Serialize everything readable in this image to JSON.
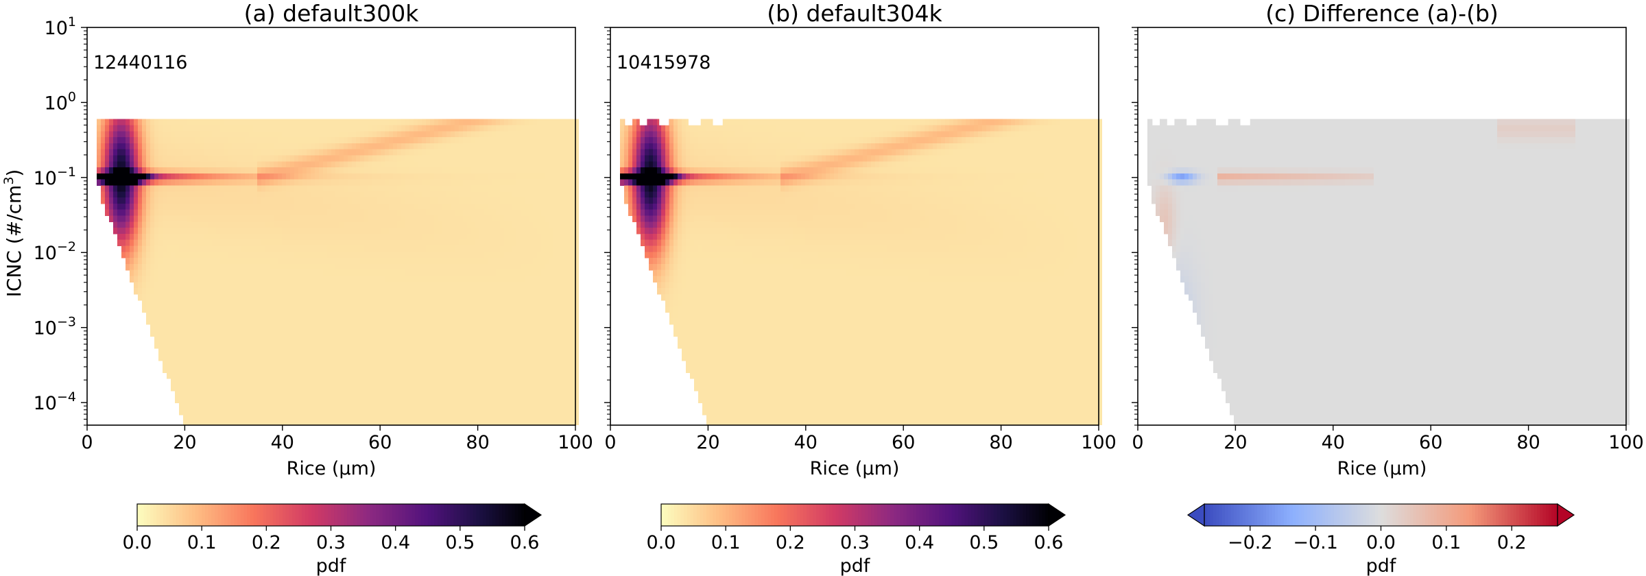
{
  "chart_data": [
    {
      "type": "heatmap",
      "title": "(a) default300k",
      "annotation": "12440116",
      "xlabel": "Rice (μm)",
      "ylabel": "ICNC (#/cm3)",
      "ylabel_text": "ICNC (#/cm",
      "ylabel_sup": "3",
      "ylabel_close": ")",
      "xlim": [
        0,
        100
      ],
      "ylim": [
        5e-05,
        10
      ],
      "yscale": "log",
      "x_ticks": [
        "0",
        "20",
        "40",
        "60",
        "80",
        "100"
      ],
      "y_ticks": [
        {
          "base": "10",
          "exp": "1",
          "value": 10
        },
        {
          "base": "10",
          "exp": "0",
          "value": 1
        },
        {
          "base": "10",
          "exp": "−1",
          "value": 0.1
        },
        {
          "base": "10",
          "exp": "−2",
          "value": 0.01
        },
        {
          "base": "10",
          "exp": "−3",
          "value": 0.001
        },
        {
          "base": "10",
          "exp": "−4",
          "value": 0.0001
        }
      ],
      "colormap": "magma_r",
      "colorbar": {
        "label": "pdf",
        "range": [
          0,
          0.6
        ],
        "extend": "max",
        "ticks": [
          "0.0",
          "0.1",
          "0.2",
          "0.3",
          "0.4",
          "0.5",
          "0.6"
        ]
      },
      "features": {
        "ridge_y": 0.1,
        "peak_x": 8,
        "peak_value": 0.6,
        "ridge_extends_to_x": 55,
        "secondary_band_to_x": 90
      }
    },
    {
      "type": "heatmap",
      "title": "(b) default304k",
      "annotation": "10415978",
      "xlabel": "Rice (μm)",
      "xlim": [
        0,
        100
      ],
      "ylim": [
        5e-05,
        10
      ],
      "yscale": "log",
      "x_ticks": [
        "0",
        "20",
        "40",
        "60",
        "80",
        "100"
      ],
      "colormap": "magma_r",
      "colorbar": {
        "label": "pdf",
        "range": [
          0,
          0.6
        ],
        "extend": "max",
        "ticks": [
          "0.0",
          "0.1",
          "0.2",
          "0.3",
          "0.4",
          "0.5",
          "0.6"
        ]
      },
      "features": {
        "ridge_y": 0.1,
        "peak_x": 9,
        "peak_value": 0.6,
        "ridge_extends_to_x": 52,
        "secondary_band_to_x": 90
      }
    },
    {
      "type": "heatmap",
      "title": "(c) Difference (a)-(b)",
      "xlabel": "Rice (μm)",
      "xlim": [
        0,
        100
      ],
      "ylim": [
        5e-05,
        10
      ],
      "yscale": "log",
      "x_ticks": [
        "0",
        "20",
        "40",
        "60",
        "80",
        "100"
      ],
      "colormap": "coolwarm",
      "colorbar": {
        "label": "pdf",
        "range": [
          -0.27,
          0.27
        ],
        "extend": "both",
        "ticks": [
          "−0.2",
          "−0.1",
          "0.0",
          "0.1",
          "0.2"
        ],
        "tick_values": [
          -0.2,
          -0.1,
          0,
          0.1,
          0.2
        ]
      },
      "features": {
        "negative_core_x": [
          2,
          14
        ],
        "positive_ridge_x": [
          16,
          48
        ],
        "positive_band_x": [
          74,
          90
        ]
      }
    }
  ]
}
